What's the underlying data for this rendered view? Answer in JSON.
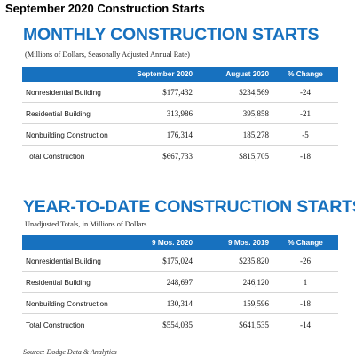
{
  "title": "September 2020 Construction Starts",
  "monthly": {
    "heading": "MONTHLY CONSTRUCTION STARTS",
    "subtitle": "(Millions of Dollars, Seasonally Adjusted Annual Rate)",
    "columns": [
      "",
      "September 2020",
      "August 2020",
      "% Change"
    ],
    "rows": [
      [
        "Nonresidential Building",
        "$177,432",
        "$234,569",
        "-24"
      ],
      [
        "Residential Building",
        "313,986",
        "395,858",
        "-21"
      ],
      [
        "Nonbuilding Construction",
        "176,314",
        "185,278",
        "-5"
      ],
      [
        "Total Construction",
        "$667,733",
        "$815,705",
        "-18"
      ]
    ]
  },
  "ytd": {
    "heading": "YEAR-TO-DATE CONSTRUCTION STARTS",
    "subtitle": "Unadjusted Totals, in Millions of Dollars",
    "columns": [
      "",
      "9 Mos. 2020",
      "9 Mos. 2019",
      "% Change"
    ],
    "rows": [
      [
        "Nonresidential Building",
        "$175,024",
        "$235,820",
        "-26"
      ],
      [
        "Residential Building",
        "248,697",
        "246,120",
        "1"
      ],
      [
        "Nonbuilding Construction",
        "130,314",
        "159,596",
        "-18"
      ],
      [
        "Total Construction",
        "$554,035",
        "$641,535",
        "-14"
      ]
    ]
  },
  "source": "Source: Dodge Data & Analytics",
  "colors": {
    "accent": "#1771bf",
    "header_text": "#ffffff"
  }
}
